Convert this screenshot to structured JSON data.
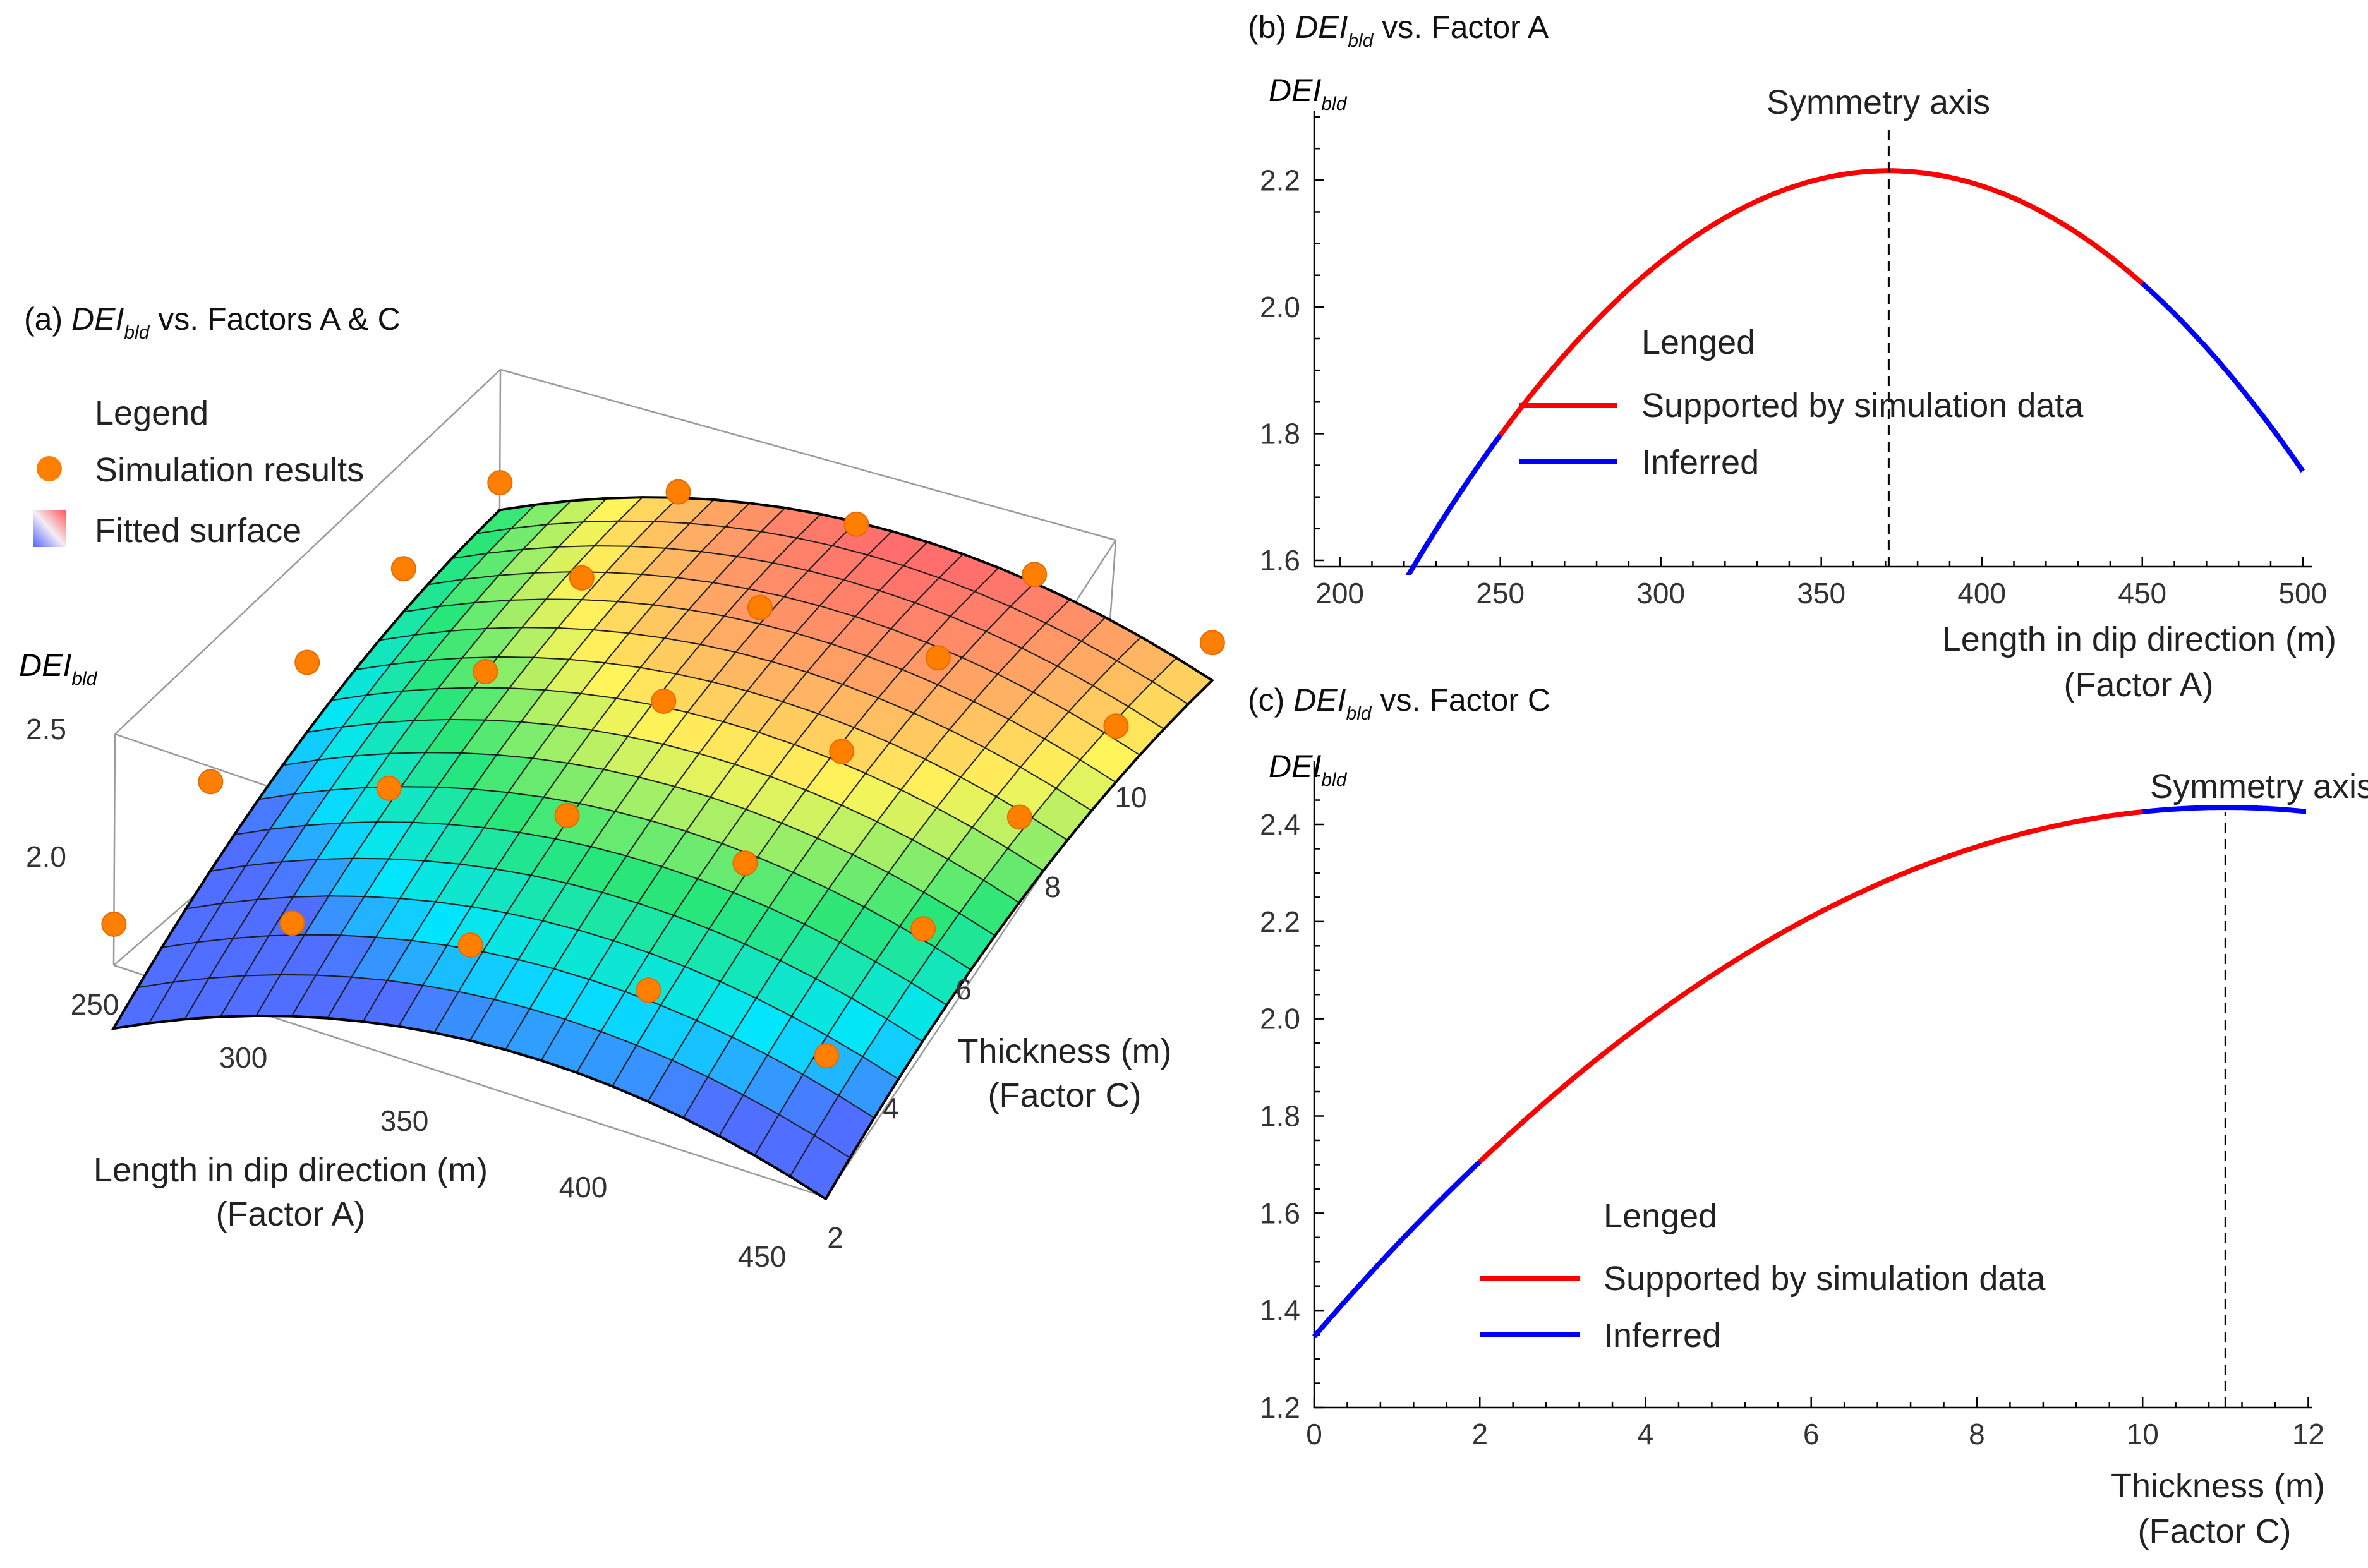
{
  "chart_data": [
    {
      "type": "surface3d",
      "panel": "(a)",
      "title": {
        "prefix": "(a) ",
        "var": "DEI",
        "sub": "bld",
        "rest": " vs. Factors A & C"
      },
      "zlabel": {
        "var": "DEI",
        "sub": "bld"
      },
      "xlabel": [
        "Length in dip direction (m)",
        "(Factor A)"
      ],
      "ylabel": [
        "Thickness (m)",
        "(Factor C)"
      ],
      "x_ticks": [
        "250",
        "300",
        "350",
        "400",
        "450"
      ],
      "y_ticks": [
        "2",
        "4",
        "6",
        "8",
        "10"
      ],
      "z_ticks": [
        "2.0",
        "2.5"
      ],
      "x_range": [
        250,
        450
      ],
      "y_range": [
        2,
        10
      ],
      "z_range": [
        1.6,
        2.5
      ],
      "legend": {
        "title": "Legend",
        "items": [
          {
            "label": "Simulation results",
            "kind": "marker",
            "color": "#ff8000"
          },
          {
            "label": "Fitted surface",
            "kind": "gradient"
          }
        ]
      },
      "simulation_points": [
        {
          "A": 250,
          "C": 2,
          "DEI": 1.76
        },
        {
          "A": 300,
          "C": 2,
          "DEI": 1.99
        },
        {
          "A": 350,
          "C": 2,
          "DEI": 2.13
        },
        {
          "A": 400,
          "C": 2,
          "DEI": 2.18
        },
        {
          "A": 450,
          "C": 2,
          "DEI": 2.15
        },
        {
          "A": 250,
          "C": 4,
          "DEI": 1.99
        },
        {
          "A": 300,
          "C": 4,
          "DEI": 2.19
        },
        {
          "A": 350,
          "C": 4,
          "DEI": 2.31
        },
        {
          "A": 400,
          "C": 4,
          "DEI": 2.35
        },
        {
          "A": 450,
          "C": 4,
          "DEI": 2.32
        },
        {
          "A": 250,
          "C": 6,
          "DEI": 2.13
        },
        {
          "A": 300,
          "C": 6,
          "DEI": 2.32
        },
        {
          "A": 350,
          "C": 6,
          "DEI": 2.43
        },
        {
          "A": 400,
          "C": 6,
          "DEI": 2.46
        },
        {
          "A": 450,
          "C": 6,
          "DEI": 2.43
        },
        {
          "A": 250,
          "C": 8,
          "DEI": 2.17
        },
        {
          "A": 300,
          "C": 8,
          "DEI": 2.36
        },
        {
          "A": 350,
          "C": 8,
          "DEI": 2.47
        },
        {
          "A": 400,
          "C": 8,
          "DEI": 2.5
        },
        {
          "A": 450,
          "C": 8,
          "DEI": 2.46
        },
        {
          "A": 250,
          "C": 10,
          "DEI": 2.18
        },
        {
          "A": 300,
          "C": 10,
          "DEI": 2.37
        },
        {
          "A": 350,
          "C": 10,
          "DEI": 2.47
        },
        {
          "A": 400,
          "C": 10,
          "DEI": 2.5
        },
        {
          "A": 450,
          "C": 10,
          "DEI": 2.46
        }
      ]
    },
    {
      "type": "line",
      "panel": "(b)",
      "title": {
        "prefix": "(b) ",
        "var": "DEI",
        "sub": "bld",
        "rest": " vs. Factor A"
      },
      "ylabel": {
        "var": "DEI",
        "sub": "bld"
      },
      "xlabel": [
        "Length in dip direction (m)",
        "(Factor A)"
      ],
      "xlim": [
        192,
        503
      ],
      "ylim": [
        1.59,
        2.31
      ],
      "x_ticks": [
        200,
        250,
        300,
        350,
        400,
        450,
        500
      ],
      "y_ticks": [
        1.6,
        1.8,
        2.0,
        2.2
      ],
      "y_tick_labels": [
        "1.6",
        "1.8",
        "2.0",
        "2.2"
      ],
      "quadratic": {
        "vertex_x": 371,
        "vertex_y": 2.215,
        "a": -2.85e-05
      },
      "symmetry_axis": {
        "x": 371,
        "label": "Symmetry axis"
      },
      "series": [
        {
          "name": "Inferred",
          "color": "#0000ff",
          "segments": [
            [
              192,
              250
            ],
            [
              450,
              500
            ]
          ]
        },
        {
          "name": "Supported by simulation data",
          "color": "#ff0000",
          "segments": [
            [
              250,
              450
            ]
          ]
        }
      ],
      "legend": {
        "title": "Lenged",
        "items": [
          "Supported by simulation data",
          "Inferred"
        ]
      }
    },
    {
      "type": "line",
      "panel": "(c)",
      "title": {
        "prefix": "(c) ",
        "var": "DEI",
        "sub": "bld",
        "rest": " vs. Factor C"
      },
      "ylabel": {
        "var": "DEI",
        "sub": "bld"
      },
      "xlabel": [
        "Thickness (m)",
        "(Factor C)"
      ],
      "xlim": [
        0,
        12.05
      ],
      "ylim": [
        1.2,
        2.53
      ],
      "x_ticks": [
        0,
        2,
        4,
        6,
        8,
        10,
        12
      ],
      "y_ticks": [
        1.2,
        1.4,
        1.6,
        1.8,
        2.0,
        2.2,
        2.4
      ],
      "y_tick_labels": [
        "1.2",
        "1.4",
        "1.6",
        "1.8",
        "2.0",
        "2.2",
        "2.4"
      ],
      "quadratic": {
        "vertex_x": 11,
        "vertex_y": 2.435,
        "a": -0.009
      },
      "symmetry_axis": {
        "x": 11,
        "label": "Symmetry axis"
      },
      "series": [
        {
          "name": "Inferred",
          "color": "#0000ff",
          "segments": [
            [
              0,
              2
            ],
            [
              10,
              12
            ]
          ]
        },
        {
          "name": "Supported by simulation data",
          "color": "#ff0000",
          "segments": [
            [
              2,
              10
            ]
          ]
        }
      ],
      "legend": {
        "title": "Lenged",
        "items": [
          "Supported by simulation data",
          "Inferred"
        ]
      }
    }
  ]
}
